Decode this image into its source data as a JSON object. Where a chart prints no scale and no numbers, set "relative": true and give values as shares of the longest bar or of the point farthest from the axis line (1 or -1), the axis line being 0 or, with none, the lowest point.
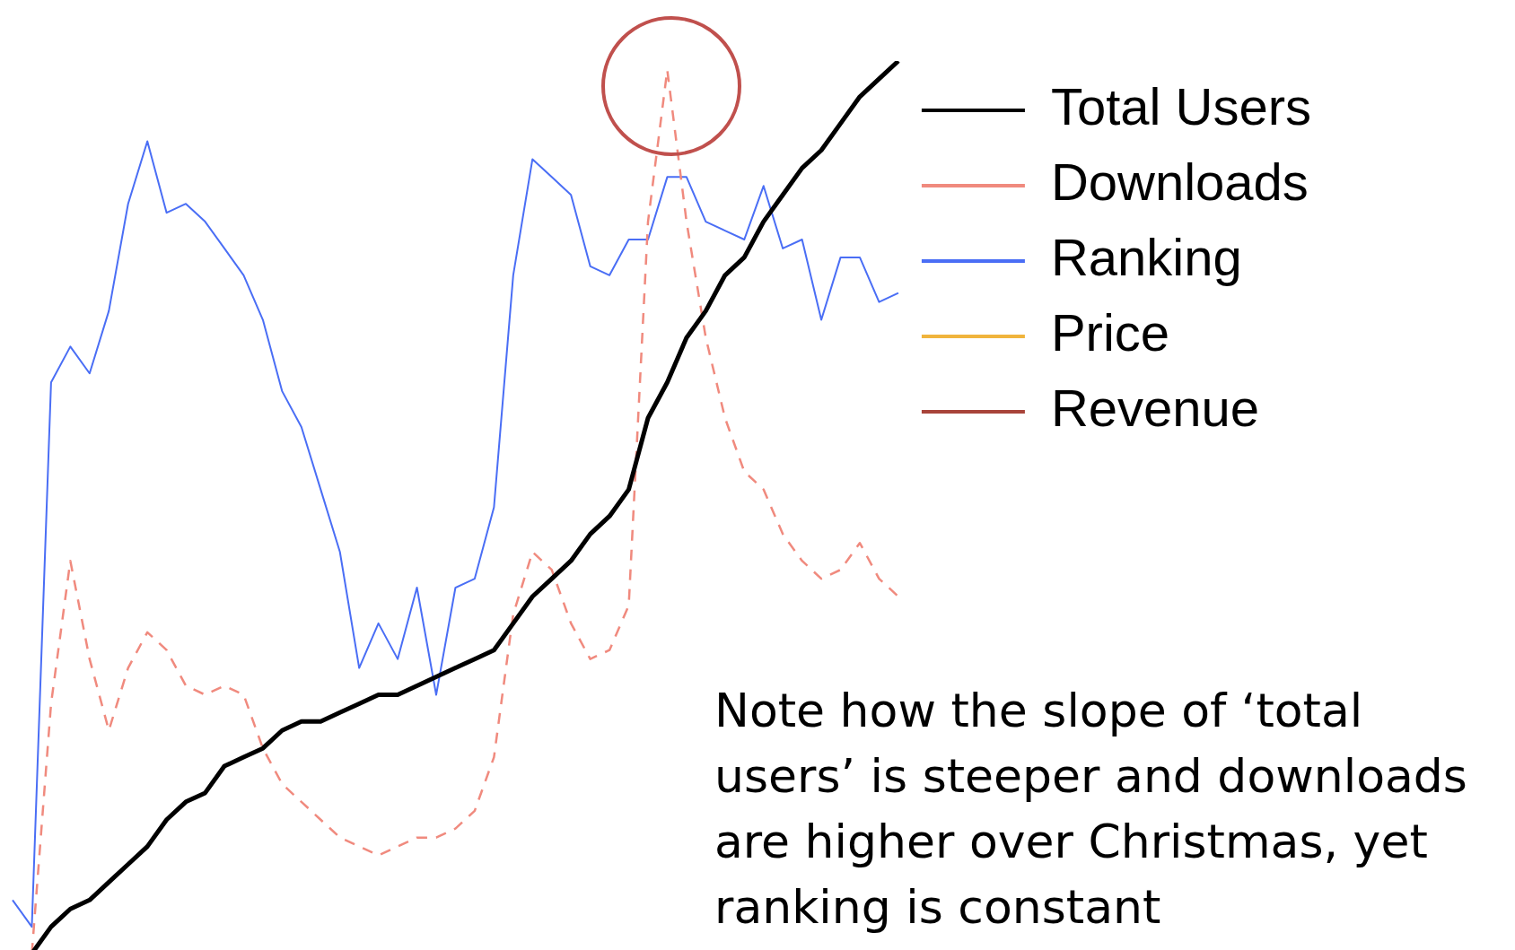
{
  "chart_data": {
    "type": "line",
    "relative": true,
    "legend": "top right",
    "marker": "none",
    "line_style": "solid",
    "categories": [
      null,
      null,
      null,
      null,
      null,
      null,
      null,
      null,
      null,
      null,
      null,
      null,
      null,
      null,
      null,
      null,
      null,
      null,
      null,
      null,
      null,
      null,
      null,
      null,
      null,
      null,
      null,
      null,
      null,
      null,
      null,
      null,
      null,
      null,
      null,
      null,
      null,
      null,
      null,
      null,
      null,
      null,
      null,
      null,
      null,
      null,
      null
    ],
    "series": [
      {
        "name": "Total Users",
        "color": "#000000",
        "values": [
          null,
          0,
          0.03,
          0.05,
          0.06,
          0.08,
          0.1,
          0.12,
          0.15,
          0.17,
          0.18,
          0.21,
          0.22,
          0.23,
          0.25,
          0.26,
          0.26,
          0.27,
          0.28,
          0.29,
          0.29,
          0.3,
          0.31,
          0.32,
          0.33,
          0.34,
          0.37,
          0.4,
          0.42,
          0.44,
          0.47,
          0.49,
          0.52,
          0.6,
          0.64,
          0.69,
          0.72,
          0.76,
          0.78,
          0.82,
          0.85,
          0.88,
          0.9,
          0.93,
          0.96,
          0.98,
          1
        ]
      },
      {
        "name": "Downloads",
        "color": "#f08a7e",
        "line_style": "dashed",
        "values": [
          null,
          0,
          0.28,
          0.44,
          0.33,
          0.25,
          0.32,
          0.36,
          0.34,
          0.3,
          0.29,
          0.3,
          0.29,
          0.23,
          0.19,
          0.17,
          0.15,
          0.13,
          0.12,
          0.11,
          0.12,
          0.13,
          0.13,
          0.14,
          0.16,
          0.22,
          0.38,
          0.45,
          0.43,
          0.37,
          0.33,
          0.34,
          0.39,
          0.82,
          0.99,
          0.82,
          0.69,
          0.6,
          0.54,
          0.52,
          0.47,
          0.44,
          0.42,
          0.43,
          0.46,
          0.42,
          0.4
        ]
      },
      {
        "name": "Ranking",
        "color": "#4a6ef5",
        "values": [
          0.06,
          0.03,
          0.64,
          0.68,
          0.65,
          0.72,
          0.84,
          0.91,
          0.83,
          0.84,
          0.82,
          0.79,
          0.76,
          0.71,
          0.63,
          0.59,
          0.52,
          0.45,
          0.32,
          0.37,
          0.33,
          0.41,
          0.29,
          0.41,
          0.42,
          0.5,
          0.76,
          0.89,
          0.87,
          0.85,
          0.77,
          0.76,
          0.8,
          0.8,
          0.87,
          0.87,
          0.82,
          0.81,
          0.8,
          0.86,
          0.79,
          0.8,
          0.71,
          0.78,
          0.78,
          0.73,
          0.74
        ]
      },
      {
        "name": "Price",
        "color": "#f0b43c",
        "values": [
          null,
          null,
          null,
          null,
          null,
          null,
          null,
          null,
          null,
          null,
          null,
          null,
          null,
          null,
          null,
          null,
          null,
          null,
          null,
          null,
          null,
          null,
          null,
          null,
          null,
          null,
          null,
          null,
          null,
          null,
          null,
          null,
          null,
          null,
          null,
          null,
          null,
          null,
          null,
          null,
          null,
          null,
          null,
          null,
          null,
          null,
          null
        ]
      },
      {
        "name": "Revenue",
        "color": "#a8443a",
        "values": [
          null,
          null,
          null,
          null,
          null,
          null,
          null,
          null,
          null,
          null,
          null,
          null,
          null,
          null,
          null,
          null,
          null,
          null,
          null,
          null,
          null,
          null,
          null,
          null,
          null,
          null,
          null,
          null,
          null,
          null,
          null,
          null,
          null,
          null,
          null,
          null,
          null,
          null,
          null,
          null,
          null,
          null,
          null,
          null,
          null,
          null,
          null
        ]
      }
    ],
    "annotations": [
      {
        "text": "Note how the slope of ‘total users’ is steeper and downloads are higher over Christmas, yet ranking is constant"
      }
    ]
  }
}
